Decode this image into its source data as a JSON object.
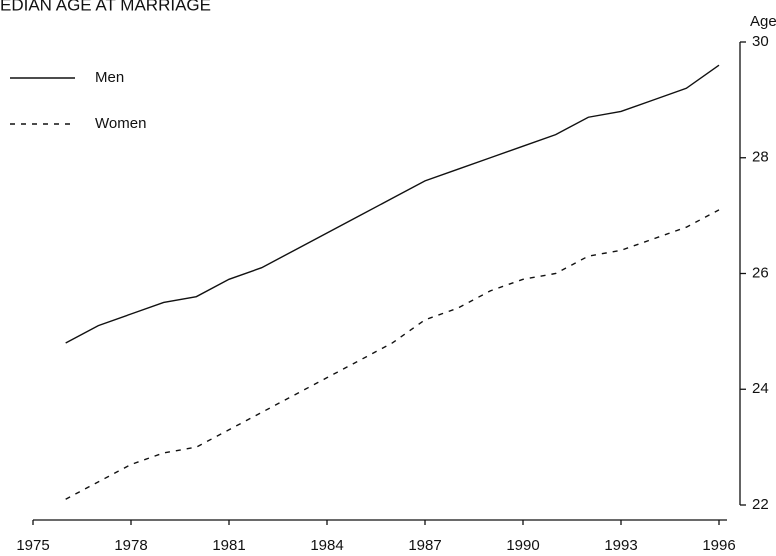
{
  "chart_data": {
    "type": "line",
    "title": "EDIAN AGE AT MARRIAGE",
    "y_label": "Age",
    "x": [
      1976,
      1977,
      1978,
      1979,
      1980,
      1981,
      1982,
      1983,
      1984,
      1985,
      1986,
      1987,
      1988,
      1989,
      1990,
      1991,
      1992,
      1993,
      1994,
      1995,
      1996
    ],
    "series": [
      {
        "name": "Men",
        "color": "#111111",
        "dash": false,
        "values": [
          24.8,
          25.1,
          25.3,
          25.5,
          25.6,
          25.9,
          26.1,
          26.4,
          26.7,
          27.0,
          27.3,
          27.6,
          27.8,
          28.0,
          28.2,
          28.4,
          28.7,
          28.8,
          29.0,
          29.2,
          29.6
        ]
      },
      {
        "name": "Women",
        "color": "#111111",
        "dash": true,
        "values": [
          22.1,
          22.4,
          22.7,
          22.9,
          23.0,
          23.3,
          23.6,
          23.9,
          24.2,
          24.5,
          24.8,
          25.2,
          25.4,
          25.7,
          25.9,
          26.0,
          26.3,
          26.4,
          26.6,
          26.8,
          27.1
        ]
      }
    ],
    "xlim": [
      1975,
      1996
    ],
    "xticks": [
      1975,
      1978,
      1981,
      1984,
      1987,
      1990,
      1993,
      1996
    ],
    "ylim": [
      22,
      30
    ],
    "yticks": [
      22,
      24,
      26,
      28,
      30
    ],
    "y_axis_side": "right",
    "legend": "upper left",
    "grid": false
  }
}
